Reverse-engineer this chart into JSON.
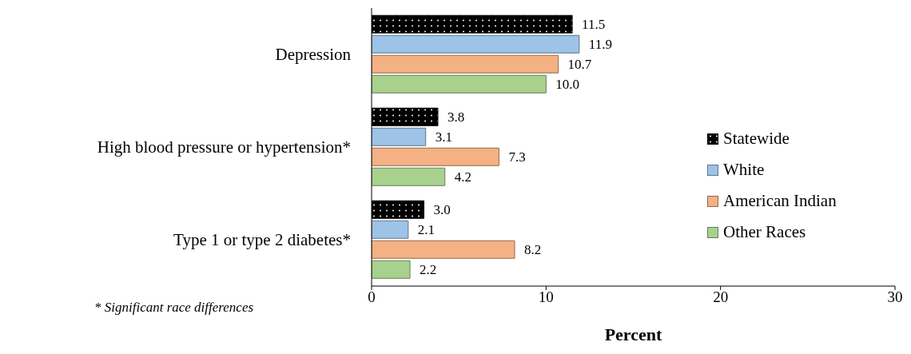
{
  "chart_data": {
    "type": "bar",
    "orientation": "horizontal",
    "categories": [
      "Depression",
      "High blood pressure or hypertension*",
      "Type 1 or type 2 diabetes*"
    ],
    "series": [
      {
        "name": "Statewide",
        "color": "#000000",
        "values": [
          11.5,
          3.8,
          3.0
        ],
        "value_labels": [
          "11.5",
          "3.8",
          "3.0"
        ]
      },
      {
        "name": "White",
        "color": "#9dc3e6",
        "values": [
          11.9,
          3.1,
          2.1
        ],
        "value_labels": [
          "11.9",
          "3.1",
          "2.1"
        ]
      },
      {
        "name": "American Indian",
        "color": "#f4b183",
        "values": [
          10.7,
          7.3,
          8.2
        ],
        "value_labels": [
          "10.7",
          "7.3",
          "8.2"
        ]
      },
      {
        "name": "Other Races",
        "color": "#a9d18e",
        "values": [
          10.0,
          4.2,
          2.2
        ],
        "value_labels": [
          "10.0",
          "4.2",
          "2.2"
        ]
      }
    ],
    "xlim": [
      0,
      30
    ],
    "xticks": [
      0,
      10,
      20,
      30
    ],
    "xlabel": "Percent",
    "legend": "right",
    "annotations": [
      "* Significant race differences"
    ]
  }
}
